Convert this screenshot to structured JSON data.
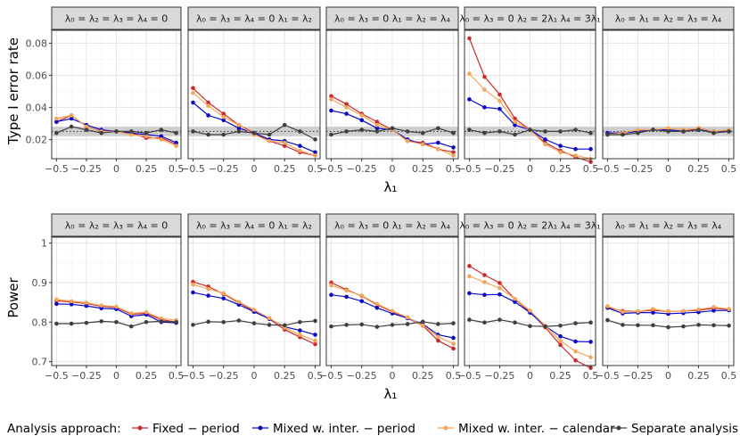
{
  "chart_data": {
    "type": "line",
    "facet_labels": [
      "λ₀ = λ₂ = λ₃ = λ₄ = 0",
      "λ₀ = λ₃ = λ₄ = 0  λ₁ = λ₂",
      "λ₀ = λ₃ = 0  λ₁ = λ₂ = λ₄",
      "λ₀ = λ₃ = 0  λ₂ = 2λ₁  λ₄ = 3λ₁",
      "λ₀ = λ₁ = λ₂ = λ₃ = λ₄"
    ],
    "x": [
      -0.5,
      -0.375,
      -0.25,
      -0.125,
      0,
      0.125,
      0.25,
      0.375,
      0.5
    ],
    "x_ticks": [
      -0.5,
      -0.25,
      0,
      0.25,
      0.5
    ],
    "x_tick_labels": [
      "−0.5",
      "−0.25",
      "0",
      "0.25",
      "0.5"
    ],
    "xlabel": "λ₁",
    "legend": {
      "title": "Analysis approach:",
      "position": "bottom",
      "entries": [
        "Fixed − period",
        "Mixed w. inter. − period",
        "Mixed w. inter. − calendar",
        "Separate analysis"
      ]
    },
    "colors": [
      "#cc2a2a",
      "#0a0ac8",
      "#f5a55a",
      "#3f3f3f"
    ],
    "charts": [
      {
        "title": "Type I error rate",
        "ylabel": "Type I error rate",
        "ylim": [
          0.008,
          0.088
        ],
        "y_ticks": [
          0.02,
          0.04,
          0.06,
          0.08
        ],
        "y_tick_labels": [
          "0.02",
          "0.04",
          "0.06",
          "0.08"
        ],
        "reference_band": [
          0.022,
          0.028
        ],
        "reference_line": 0.025,
        "panels": [
          {
            "series": [
              {
                "name": "Fixed − period",
                "values": [
                  0.031,
                  0.035,
                  0.028,
                  0.025,
                  0.025,
                  0.024,
                  0.021,
                  0.021,
                  0.017
                ]
              },
              {
                "name": "Mixed w. inter. − period",
                "values": [
                  0.031,
                  0.033,
                  0.029,
                  0.026,
                  0.025,
                  0.024,
                  0.023,
                  0.022,
                  0.018
                ]
              },
              {
                "name": "Mixed w. inter. − calendar",
                "values": [
                  0.033,
                  0.035,
                  0.028,
                  0.025,
                  0.025,
                  0.023,
                  0.022,
                  0.02,
                  0.016
                ]
              },
              {
                "name": "Separate analysis",
                "values": [
                  0.024,
                  0.028,
                  0.026,
                  0.024,
                  0.025,
                  0.025,
                  0.024,
                  0.026,
                  0.024
                ]
              }
            ]
          },
          {
            "series": [
              {
                "name": "Fixed − period",
                "values": [
                  0.052,
                  0.043,
                  0.036,
                  0.029,
                  0.024,
                  0.019,
                  0.016,
                  0.012,
                  0.01
                ]
              },
              {
                "name": "Mixed w. inter. − period",
                "values": [
                  0.043,
                  0.035,
                  0.032,
                  0.027,
                  0.024,
                  0.02,
                  0.019,
                  0.016,
                  0.012
                ]
              },
              {
                "name": "Mixed w. inter. − calendar",
                "values": [
                  0.049,
                  0.041,
                  0.034,
                  0.029,
                  0.023,
                  0.019,
                  0.018,
                  0.013,
                  0.01
                ]
              },
              {
                "name": "Separate analysis",
                "values": [
                  0.025,
                  0.023,
                  0.023,
                  0.025,
                  0.024,
                  0.023,
                  0.029,
                  0.025,
                  0.02
                ]
              }
            ]
          },
          {
            "series": [
              {
                "name": "Fixed − period",
                "values": [
                  0.047,
                  0.042,
                  0.036,
                  0.031,
                  0.026,
                  0.019,
                  0.018,
                  0.014,
                  0.012
                ]
              },
              {
                "name": "Mixed w. inter. − period",
                "values": [
                  0.038,
                  0.036,
                  0.032,
                  0.027,
                  0.026,
                  0.02,
                  0.017,
                  0.018,
                  0.015
                ]
              },
              {
                "name": "Mixed w. inter. − calendar",
                "values": [
                  0.045,
                  0.04,
                  0.035,
                  0.029,
                  0.026,
                  0.019,
                  0.017,
                  0.014,
                  0.01
                ]
              },
              {
                "name": "Separate analysis",
                "values": [
                  0.023,
                  0.025,
                  0.026,
                  0.025,
                  0.027,
                  0.025,
                  0.024,
                  0.027,
                  0.024
                ]
              }
            ]
          },
          {
            "series": [
              {
                "name": "Fixed − period",
                "values": [
                  0.083,
                  0.059,
                  0.048,
                  0.033,
                  0.026,
                  0.018,
                  0.013,
                  0.009,
                  0.006
                ]
              },
              {
                "name": "Mixed w. inter. − period",
                "values": [
                  0.045,
                  0.04,
                  0.039,
                  0.029,
                  0.026,
                  0.02,
                  0.016,
                  0.014,
                  0.014
                ]
              },
              {
                "name": "Mixed w. inter. − calendar",
                "values": [
                  0.061,
                  0.051,
                  0.044,
                  0.031,
                  0.026,
                  0.017,
                  0.012,
                  0.01,
                  0.008
                ]
              },
              {
                "name": "Separate analysis",
                "values": [
                  0.026,
                  0.024,
                  0.025,
                  0.023,
                  0.026,
                  0.025,
                  0.025,
                  0.026,
                  0.024
                ]
              }
            ]
          },
          {
            "series": [
              {
                "name": "Fixed − period",
                "values": [
                  0.024,
                  0.024,
                  0.025,
                  0.026,
                  0.026,
                  0.025,
                  0.027,
                  0.025,
                  0.025
                ]
              },
              {
                "name": "Mixed w. inter. − period",
                "values": [
                  0.024,
                  0.024,
                  0.025,
                  0.026,
                  0.026,
                  0.025,
                  0.026,
                  0.025,
                  0.025
                ]
              },
              {
                "name": "Mixed w. inter. − calendar",
                "values": [
                  0.023,
                  0.024,
                  0.026,
                  0.026,
                  0.027,
                  0.026,
                  0.027,
                  0.025,
                  0.026
                ]
              },
              {
                "name": "Separate analysis",
                "values": [
                  0.023,
                  0.023,
                  0.024,
                  0.026,
                  0.025,
                  0.025,
                  0.026,
                  0.024,
                  0.025
                ]
              }
            ]
          }
        ]
      },
      {
        "title": "Power",
        "ylabel": "Power",
        "ylim": [
          0.69,
          1.015
        ],
        "y_ticks": [
          0.7,
          0.8,
          0.9,
          1.0
        ],
        "y_tick_labels": [
          "0.7",
          "0.8",
          "0.9",
          "1"
        ],
        "panels": [
          {
            "series": [
              {
                "name": "Fixed − period",
                "values": [
                  0.854,
                  0.851,
                  0.847,
                  0.84,
                  0.837,
                  0.82,
                  0.822,
                  0.806,
                  0.8
                ]
              },
              {
                "name": "Mixed w. inter. − period",
                "values": [
                  0.846,
                  0.845,
                  0.841,
                  0.835,
                  0.833,
                  0.815,
                  0.819,
                  0.8,
                  0.798
                ]
              },
              {
                "name": "Mixed w. inter. − calendar",
                "values": [
                  0.857,
                  0.853,
                  0.849,
                  0.842,
                  0.839,
                  0.822,
                  0.825,
                  0.809,
                  0.805
                ]
              },
              {
                "name": "Separate analysis",
                "values": [
                  0.796,
                  0.796,
                  0.798,
                  0.802,
                  0.8,
                  0.789,
                  0.8,
                  0.802,
                  0.8
                ]
              }
            ]
          },
          {
            "series": [
              {
                "name": "Fixed − period",
                "values": [
                  0.902,
                  0.89,
                  0.871,
                  0.849,
                  0.828,
                  0.808,
                  0.781,
                  0.762,
                  0.744
                ]
              },
              {
                "name": "Mixed w. inter. − period",
                "values": [
                  0.875,
                  0.867,
                  0.86,
                  0.844,
                  0.826,
                  0.808,
                  0.788,
                  0.779,
                  0.768
                ]
              },
              {
                "name": "Mixed w. inter. − calendar",
                "values": [
                  0.895,
                  0.884,
                  0.873,
                  0.851,
                  0.831,
                  0.81,
                  0.786,
                  0.768,
                  0.753
                ]
              },
              {
                "name": "Separate analysis",
                "values": [
                  0.793,
                  0.801,
                  0.8,
                  0.804,
                  0.797,
                  0.793,
                  0.792,
                  0.8,
                  0.803
                ]
              }
            ]
          },
          {
            "series": [
              {
                "name": "Fixed − period",
                "values": [
                  0.9,
                  0.882,
                  0.866,
                  0.844,
                  0.826,
                  0.81,
                  0.791,
                  0.753,
                  0.733
                ]
              },
              {
                "name": "Mixed w. inter. − period",
                "values": [
                  0.869,
                  0.864,
                  0.853,
                  0.836,
                  0.822,
                  0.81,
                  0.795,
                  0.768,
                  0.76
                ]
              },
              {
                "name": "Mixed w. inter. − calendar",
                "values": [
                  0.893,
                  0.88,
                  0.867,
                  0.846,
                  0.828,
                  0.812,
                  0.792,
                  0.763,
                  0.745
                ]
              },
              {
                "name": "Separate analysis",
                "values": [
                  0.789,
                  0.793,
                  0.794,
                  0.788,
                  0.793,
                  0.795,
                  0.801,
                  0.795,
                  0.797
                ]
              }
            ]
          },
          {
            "series": [
              {
                "name": "Fixed − period",
                "values": [
                  0.942,
                  0.919,
                  0.899,
                  0.858,
                  0.826,
                  0.787,
                  0.742,
                  0.703,
                  0.684
                ]
              },
              {
                "name": "Mixed w. inter. − period",
                "values": [
                  0.873,
                  0.869,
                  0.87,
                  0.851,
                  0.824,
                  0.79,
                  0.764,
                  0.751,
                  0.75
                ]
              },
              {
                "name": "Mixed w. inter. − calendar",
                "values": [
                  0.916,
                  0.901,
                  0.886,
                  0.859,
                  0.829,
                  0.791,
                  0.752,
                  0.726,
                  0.711
                ]
              },
              {
                "name": "Separate analysis",
                "values": [
                  0.806,
                  0.799,
                  0.806,
                  0.799,
                  0.79,
                  0.789,
                  0.791,
                  0.797,
                  0.799
                ]
              }
            ]
          },
          {
            "series": [
              {
                "name": "Fixed − period",
                "values": [
                  0.837,
                  0.828,
                  0.827,
                  0.83,
                  0.827,
                  0.828,
                  0.83,
                  0.835,
                  0.832
                ]
              },
              {
                "name": "Mixed w. inter. − period",
                "values": [
                  0.836,
                  0.822,
                  0.824,
                  0.824,
                  0.821,
                  0.823,
                  0.825,
                  0.829,
                  0.83
                ]
              },
              {
                "name": "Mixed w. inter. − calendar",
                "values": [
                  0.84,
                  0.826,
                  0.827,
                  0.833,
                  0.827,
                  0.828,
                  0.832,
                  0.838,
                  0.833
                ]
              },
              {
                "name": "Separate analysis",
                "values": [
                  0.805,
                  0.793,
                  0.792,
                  0.792,
                  0.787,
                  0.789,
                  0.793,
                  0.792,
                  0.791
                ]
              }
            ]
          }
        ]
      }
    ]
  }
}
